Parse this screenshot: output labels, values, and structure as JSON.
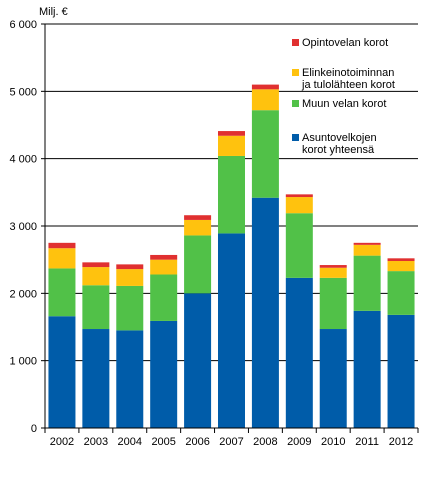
{
  "chart_data": {
    "type": "bar",
    "stacked": true,
    "unit_label": "Milj. €",
    "categories": [
      "2002",
      "2003",
      "2004",
      "2005",
      "2006",
      "2007",
      "2008",
      "2009",
      "2010",
      "2011",
      "2012"
    ],
    "series": [
      {
        "name": "Asuntovelkojen korot yhteensä",
        "color": "#005ca9",
        "values": [
          1660,
          1470,
          1450,
          1590,
          2000,
          2890,
          3420,
          2230,
          1470,
          1740,
          1680
        ]
      },
      {
        "name": "Muun velan korot",
        "color": "#51c148",
        "values": [
          710,
          650,
          660,
          690,
          860,
          1150,
          1300,
          960,
          760,
          820,
          650
        ]
      },
      {
        "name": "Elinkeinotoiminnan ja tulolähteen korot",
        "color": "#ffc20e",
        "values": [
          300,
          270,
          250,
          220,
          230,
          300,
          310,
          240,
          150,
          160,
          150
        ]
      },
      {
        "name": "Opintovelan korot",
        "color": "#e03030",
        "values": [
          80,
          70,
          70,
          70,
          70,
          70,
          70,
          40,
          40,
          30,
          40
        ]
      }
    ],
    "ylim": [
      0,
      6000
    ],
    "yticks": [
      "0",
      "1 000",
      "2 000",
      "3 000",
      "4 000",
      "5 000",
      "6 000"
    ],
    "ytick_values": [
      0,
      1000,
      2000,
      3000,
      4000,
      5000,
      6000
    ],
    "grid": "horizontal",
    "legend": {
      "placement": "top-right",
      "items": [
        {
          "lines": [
            "Opintovelan korot"
          ],
          "color": "#e03030"
        },
        {
          "lines": [
            "Elinkeinotoiminnan",
            "ja tulolähteen korot"
          ],
          "color": "#ffc20e"
        },
        {
          "lines": [
            "Muun velan korot"
          ],
          "color": "#51c148"
        },
        {
          "lines": [
            "Asuntovelkojen",
            "korot yhteensä"
          ],
          "color": "#005ca9"
        }
      ]
    }
  }
}
